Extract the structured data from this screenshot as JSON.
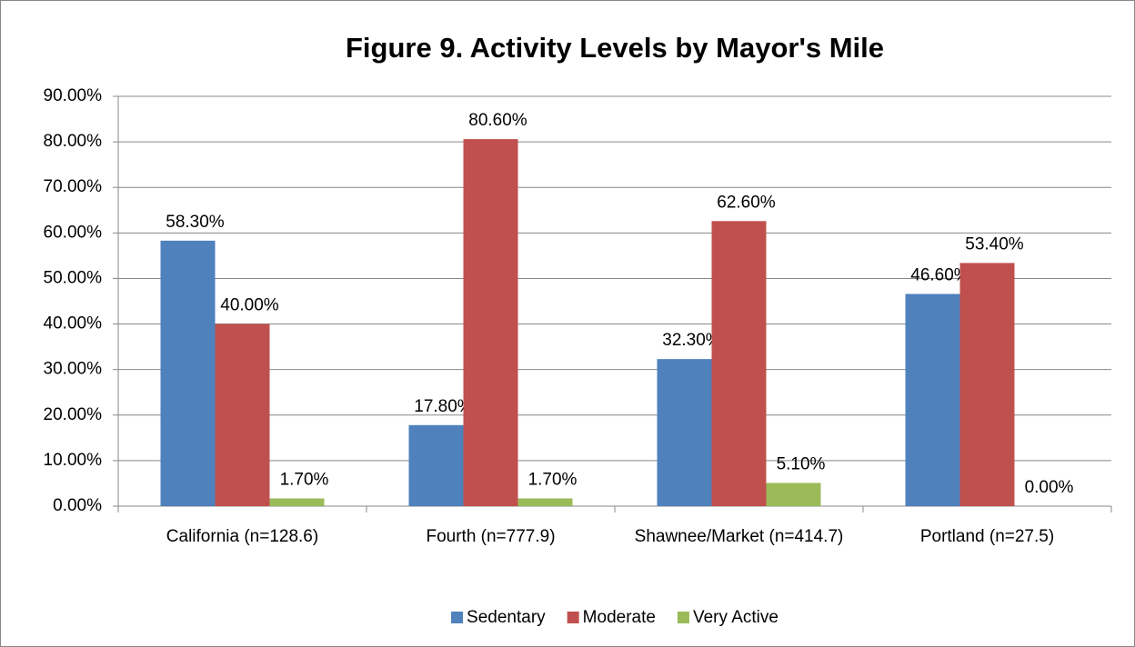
{
  "chart_data": {
    "type": "bar",
    "title": "Figure 9. Activity Levels by Mayor's Mile",
    "categories": [
      "California (n=128.6)",
      "Fourth (n=777.9)",
      "Shawnee/Market (n=414.7)",
      "Portland (n=27.5)"
    ],
    "series": [
      {
        "name": "Sedentary",
        "color": "#4f81bd",
        "values": [
          58.3,
          17.8,
          32.3,
          46.6
        ],
        "value_labels": [
          "58.30%",
          "17.80%",
          "32.30%",
          "46.60%"
        ]
      },
      {
        "name": "Moderate",
        "color": "#c0504d",
        "values": [
          40.0,
          80.6,
          62.6,
          53.4
        ],
        "value_labels": [
          "40.00%",
          "80.60%",
          "62.60%",
          "53.40%"
        ]
      },
      {
        "name": "Very Active",
        "color": "#9bbb59",
        "values": [
          1.7,
          1.7,
          5.1,
          0.0
        ],
        "value_labels": [
          "1.70%",
          "1.70%",
          "5.10%",
          "0.00%"
        ]
      }
    ],
    "ylim": [
      0,
      90
    ],
    "yticks": [
      {
        "value": 0,
        "label": "0.00%"
      },
      {
        "value": 10,
        "label": "10.00%"
      },
      {
        "value": 20,
        "label": "20.00%"
      },
      {
        "value": 30,
        "label": "30.00%"
      },
      {
        "value": 40,
        "label": "40.00%"
      },
      {
        "value": 50,
        "label": "50.00%"
      },
      {
        "value": 60,
        "label": "60.00%"
      },
      {
        "value": 70,
        "label": "70.00%"
      },
      {
        "value": 80,
        "label": "80.00%"
      },
      {
        "value": 90,
        "label": "90.00%"
      }
    ],
    "grid": true,
    "legend": "bottom"
  }
}
